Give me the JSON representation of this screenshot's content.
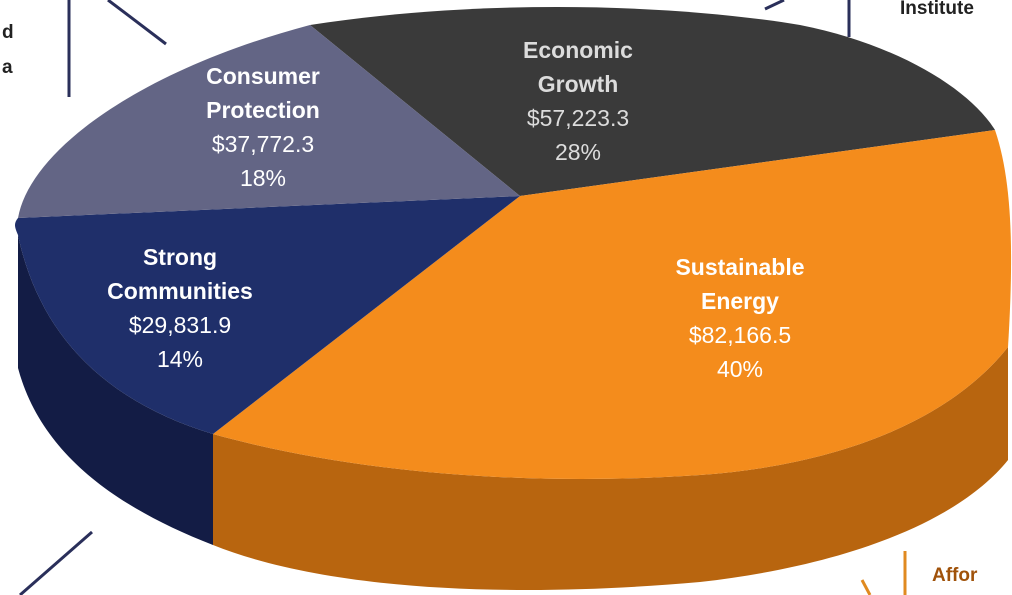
{
  "page": {
    "fragments": {
      "top_left_1": "d",
      "top_left_2": "a",
      "top_right": "Institute",
      "bottom_right": "Affor"
    }
  },
  "chart_data": {
    "type": "pie",
    "style": "3d-exploded-perspective",
    "title": "",
    "slices": [
      {
        "name": "Economic Growth",
        "label_lines": [
          "Economic",
          "Growth"
        ],
        "value_text": "$57,223.3",
        "value": 57223.3,
        "percent_text": "28%",
        "percent": 28,
        "color": "#3a3a3a",
        "side_color": "#1d1d1d",
        "label_color": "#dcdcdc"
      },
      {
        "name": "Sustainable Energy",
        "label_lines": [
          "Sustainable",
          "Energy"
        ],
        "value_text": "$82,166.5",
        "value": 82166.5,
        "percent_text": "40%",
        "percent": 40,
        "color": "#f48c1c",
        "side_color": "#b8650f",
        "label_color": "#ffffff"
      },
      {
        "name": "Strong Communities",
        "label_lines": [
          "Strong",
          "Communities"
        ],
        "value_text": "$29,831.9",
        "value": 29831.9,
        "percent_text": "14%",
        "percent": 14,
        "color": "#1f2f6a",
        "side_color": "#131c45",
        "label_color": "#ffffff"
      },
      {
        "name": "Consumer Protection",
        "label_lines": [
          "Consumer",
          "Protection"
        ],
        "value_text": "$37,772.3",
        "value": 37772.3,
        "percent_text": "18%",
        "percent": 18,
        "color": "#636585",
        "side_color": "#45465f",
        "label_color": "#ffffff"
      }
    ]
  }
}
